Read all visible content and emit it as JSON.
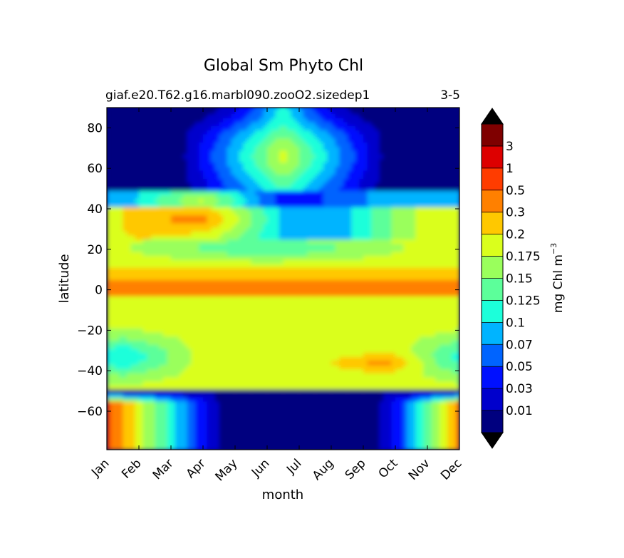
{
  "chart_data": {
    "type": "heatmap",
    "title": "Global Sm Phyto Chl",
    "subtitle_left": "giaf.e20.T62.g16.marbl090.zooO2.sizedep1",
    "subtitle_right": "3-5",
    "xlabel": "month",
    "ylabel": "latitude",
    "x_ticks": [
      "Jan",
      "Feb",
      "Mar",
      "Apr",
      "May",
      "Jun",
      "Jul",
      "Aug",
      "Sep",
      "Oct",
      "Nov",
      "Dec"
    ],
    "y_ticks": [
      80,
      60,
      40,
      20,
      0,
      -20,
      -40,
      -60
    ],
    "ylim": [
      -79,
      90
    ],
    "colorbar": {
      "label": "mg Chl m",
      "label_superscript": "−3",
      "extend": "both",
      "levels": [
        "0.01",
        "0.03",
        "0.05",
        "0.07",
        "0.1",
        "0.125",
        "0.15",
        "0.175",
        "0.2",
        "0.3",
        "0.5",
        "1",
        "3"
      ],
      "level_values": [
        0.01,
        0.03,
        0.05,
        0.07,
        0.1,
        0.125,
        0.15,
        0.175,
        0.2,
        0.3,
        0.5,
        1,
        3
      ],
      "colors": [
        "#00007f",
        "#0000cc",
        "#0010ff",
        "#0064ff",
        "#00b4ff",
        "#1cffda",
        "#5cff9a",
        "#9aff5c",
        "#daff1c",
        "#ffc800",
        "#ff8000",
        "#ff3c00",
        "#dd0000",
        "#7f0000"
      ]
    },
    "grid": false,
    "legend": "colorbar right"
  }
}
